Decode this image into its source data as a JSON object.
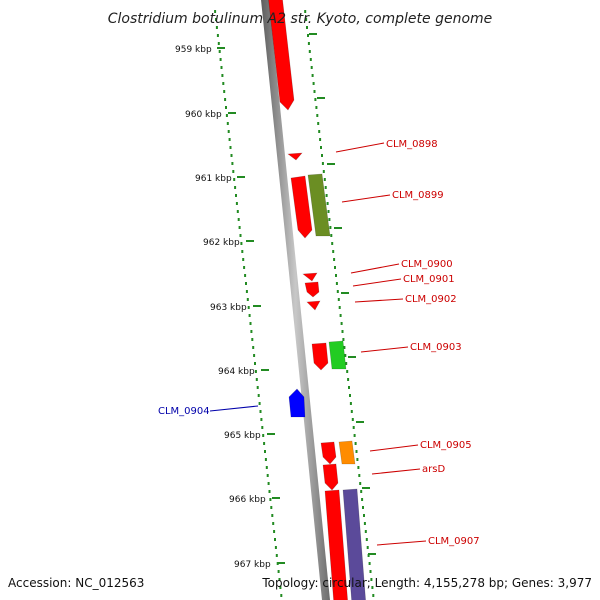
{
  "title": "Clostridium botulinum A2 str. Kyoto, complete genome",
  "footer": {
    "accession": "Accession: NC_012563",
    "summary": "Topology: circular; Length: 4,155,278 bp; Genes: 3,977"
  },
  "scale_labels": [
    "959 kbp",
    "960 kbp",
    "961 kbp",
    "962 kbp",
    "963 kbp",
    "964 kbp",
    "965 kbp",
    "966 kbp",
    "967 kbp"
  ],
  "genes": [
    {
      "label": "",
      "strand": "+",
      "color": "#ff0000"
    },
    {
      "label": "CLM_0898",
      "strand": "+",
      "color": "#ff0000"
    },
    {
      "label": "CLM_0899",
      "strand": "+",
      "color": "#ff0000"
    },
    {
      "label": "CLM_0899",
      "strand": "+",
      "color": "#6b8e23"
    },
    {
      "label": "CLM_0900",
      "strand": "+",
      "color": "#ff0000"
    },
    {
      "label": "CLM_0901",
      "strand": "+",
      "color": "#ff0000"
    },
    {
      "label": "CLM_0902",
      "strand": "+",
      "color": "#ff0000"
    },
    {
      "label": "CLM_0903",
      "strand": "+",
      "color": "#ff0000"
    },
    {
      "label": "CLM_0903",
      "strand": "+",
      "color": "#22cc22"
    },
    {
      "label": "CLM_0904",
      "strand": "-",
      "color": "#0000ff"
    },
    {
      "label": "CLM_0905",
      "strand": "+",
      "color": "#ff0000"
    },
    {
      "label": "CLM_0905",
      "strand": "+",
      "color": "#ff8c00"
    },
    {
      "label": "arsD",
      "strand": "+",
      "color": "#ff0000"
    },
    {
      "label": "CLM_0907",
      "strand": "+",
      "color": "#ff0000"
    },
    {
      "label": "CLM_0907",
      "strand": "+",
      "color": "#5b4a9a"
    }
  ],
  "gene_labels": [
    "CLM_0898",
    "CLM_0899",
    "CLM_0900",
    "CLM_0901",
    "CLM_0902",
    "CLM_0903",
    "CLM_0904",
    "CLM_0905",
    "arsD",
    "CLM_0907"
  ],
  "colors": {
    "forward_label": "#cc0000",
    "reverse_label": "#0000aa",
    "backbone": "#888888",
    "ticks": "#228b22"
  }
}
